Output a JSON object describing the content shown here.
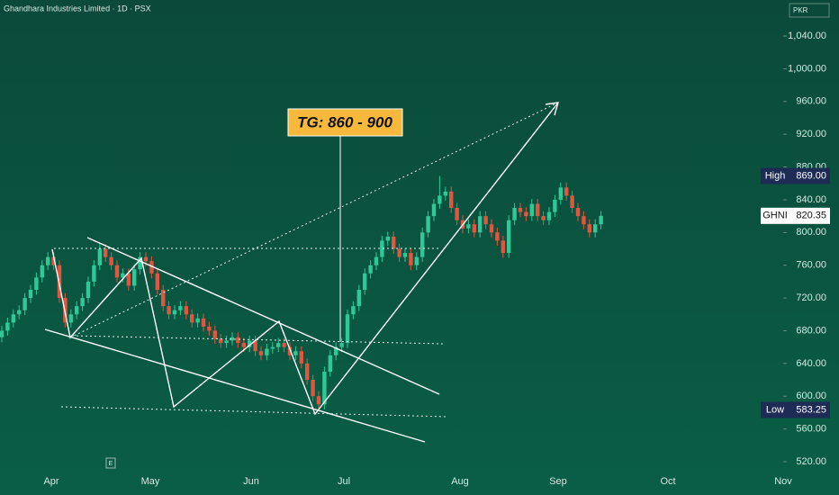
{
  "chart_data": {
    "type": "candlestick",
    "title": "Ghandhara Industries Limited · 1D · PSX",
    "currency": "PKR",
    "annotation": "TG: 860 - 900",
    "event_marker": "E",
    "x_labels": [
      "Apr",
      "May",
      "Jun",
      "Jul",
      "Aug",
      "Sep",
      "Oct",
      "Nov"
    ],
    "ylim": [
      512.3,
      1084
    ],
    "yticks": [
      {
        "value": 520,
        "label": "520.00"
      },
      {
        "value": 560,
        "label": "560.00"
      },
      {
        "value": 600,
        "label": "600.00"
      },
      {
        "value": 640,
        "label": "640.00"
      },
      {
        "value": 680,
        "label": "680.00"
      },
      {
        "value": 720,
        "label": "720.00"
      },
      {
        "value": 760,
        "label": "760.00"
      },
      {
        "value": 800,
        "label": "800.00"
      },
      {
        "value": 840,
        "label": "840.00"
      },
      {
        "value": 880,
        "label": "880.00"
      },
      {
        "value": 920,
        "label": "920.00"
      },
      {
        "value": 960,
        "label": "960.00"
      },
      {
        "value": 1000,
        "label": "1,000.00"
      },
      {
        "value": 1040,
        "label": "1,040.00"
      }
    ],
    "up_color": "#2ec997",
    "down_color": "#e2553f",
    "high": {
      "name": "High",
      "value": 869,
      "label": "869.00"
    },
    "low": {
      "name": "Low",
      "value": 583.25,
      "label": "583.25"
    },
    "last": {
      "name": "GHNI",
      "value": 820.35,
      "label": "820.35"
    },
    "open": [
      672,
      680,
      690,
      700,
      705,
      720,
      730,
      745,
      760,
      770,
      760,
      720,
      690,
      700,
      710,
      720,
      740,
      760,
      780,
      770,
      760,
      745,
      750,
      735,
      755,
      770,
      765,
      750,
      730,
      710,
      700,
      705,
      710,
      700,
      690,
      695,
      685,
      680,
      670,
      665,
      668,
      672,
      665,
      660,
      668,
      655,
      650,
      658,
      660,
      665,
      660,
      650,
      655,
      640,
      620,
      600,
      590,
      630,
      650,
      660,
      665,
      700,
      710,
      730,
      750,
      760,
      770,
      790,
      795,
      780,
      770,
      775,
      760,
      770,
      800,
      820,
      835,
      845,
      850,
      830,
      815,
      805,
      810,
      800,
      820,
      810,
      800,
      790,
      775,
      815,
      830,
      825,
      820,
      835,
      820,
      815,
      825,
      840,
      855,
      845,
      830,
      820,
      810,
      800,
      810
    ],
    "high_values": [
      686,
      696,
      706,
      711,
      726,
      736,
      751,
      766,
      776,
      776,
      766,
      726,
      706,
      716,
      726,
      746,
      766,
      786,
      786,
      776,
      766,
      756,
      756,
      761,
      776,
      776,
      771,
      756,
      736,
      716,
      711,
      716,
      716,
      706,
      701,
      701,
      691,
      686,
      676,
      674,
      678,
      678,
      671,
      674,
      674,
      661,
      664,
      666,
      671,
      671,
      666,
      661,
      661,
      646,
      626,
      606,
      636,
      656,
      666,
      671,
      706,
      716,
      736,
      756,
      766,
      776,
      796,
      801,
      801,
      786,
      781,
      781,
      776,
      806,
      826,
      841,
      869,
      856,
      856,
      836,
      821,
      816,
      816,
      826,
      826,
      816,
      806,
      796,
      821,
      836,
      836,
      831,
      841,
      841,
      826,
      831,
      846,
      861,
      861,
      851,
      836,
      826,
      816,
      816,
      826
    ],
    "low_values": [
      666,
      674,
      684,
      694,
      699,
      714,
      724,
      739,
      754,
      754,
      714,
      684,
      684,
      694,
      704,
      714,
      734,
      754,
      764,
      754,
      739,
      739,
      729,
      729,
      749,
      759,
      744,
      724,
      704,
      694,
      694,
      699,
      694,
      684,
      684,
      679,
      674,
      664,
      659,
      659,
      662,
      659,
      654,
      654,
      649,
      644,
      644,
      652,
      654,
      654,
      644,
      644,
      634,
      614,
      594,
      583.25,
      584,
      624,
      644,
      654,
      659,
      694,
      704,
      724,
      744,
      754,
      764,
      784,
      774,
      764,
      764,
      754,
      754,
      764,
      794,
      814,
      829,
      839,
      824,
      809,
      799,
      799,
      794,
      794,
      804,
      794,
      784,
      769,
      769,
      809,
      819,
      814,
      814,
      814,
      809,
      809,
      819,
      834,
      839,
      824,
      814,
      804,
      794,
      794,
      804
    ],
    "close": [
      680,
      690,
      700,
      705,
      720,
      730,
      745,
      760,
      770,
      760,
      720,
      690,
      700,
      710,
      720,
      740,
      760,
      780,
      770,
      760,
      745,
      750,
      735,
      755,
      770,
      765,
      750,
      730,
      710,
      700,
      705,
      710,
      700,
      690,
      695,
      685,
      680,
      670,
      665,
      668,
      672,
      665,
      660,
      668,
      655,
      650,
      658,
      660,
      665,
      660,
      650,
      655,
      640,
      620,
      600,
      590,
      630,
      650,
      660,
      665,
      700,
      710,
      730,
      750,
      760,
      770,
      790,
      795,
      780,
      770,
      775,
      760,
      770,
      800,
      820,
      835,
      845,
      850,
      830,
      815,
      805,
      810,
      800,
      820,
      810,
      800,
      790,
      775,
      815,
      830,
      825,
      820,
      835,
      820,
      815,
      825,
      840,
      855,
      845,
      830,
      820,
      810,
      800,
      810,
      820.35
    ]
  }
}
